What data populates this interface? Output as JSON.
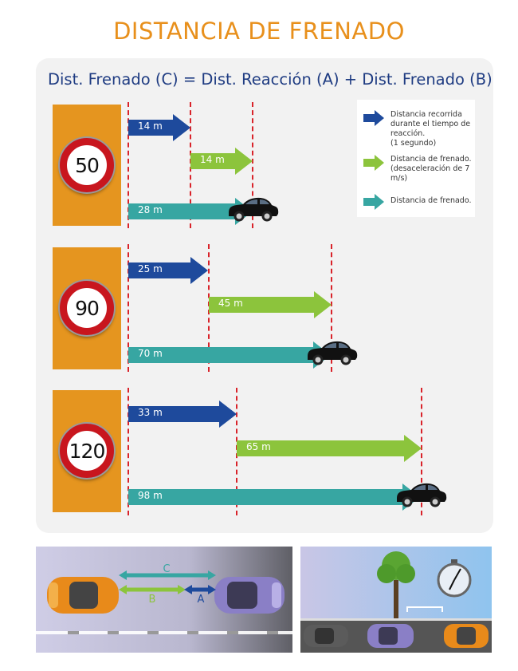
{
  "title": "DISTANCIA DE FRENADO",
  "formula": "Dist.  Frenado (C) = Dist.  Reacción (A) + Dist.  Frenado (B)",
  "legend": [
    {
      "icon": "blue-arrow-icon",
      "color": "#1e4a9c",
      "text": "Distancia recorrida durante el tiempo de reacción.",
      "note": "(1 segundo)"
    },
    {
      "icon": "green-arrow-icon",
      "color": "#8cc43c",
      "text": "Distancia de frenado. (desaceleración de 7 m/s)"
    },
    {
      "icon": "teal-arrow-icon",
      "color": "#37a6a2",
      "text": "Distancia de frenado."
    }
  ],
  "rows": [
    {
      "speed": "50",
      "reaction": "14 m",
      "braking": "14 m",
      "total": "28 m"
    },
    {
      "speed": "90",
      "reaction": "25 m",
      "braking": "45 m",
      "total": "70 m"
    },
    {
      "speed": "120",
      "reaction": "33 m",
      "braking": "65 m",
      "total": "98 m"
    }
  ],
  "scene": {
    "label_c": "C",
    "label_b": "B",
    "label_a": "A"
  },
  "colors": {
    "accent_orange": "#e8901c",
    "formula_blue": "#1f3c82",
    "reaction_blue": "#1e4a9c",
    "braking_green": "#8cc43c",
    "total_teal": "#37a6a2",
    "dash_red": "#d9232a"
  }
}
